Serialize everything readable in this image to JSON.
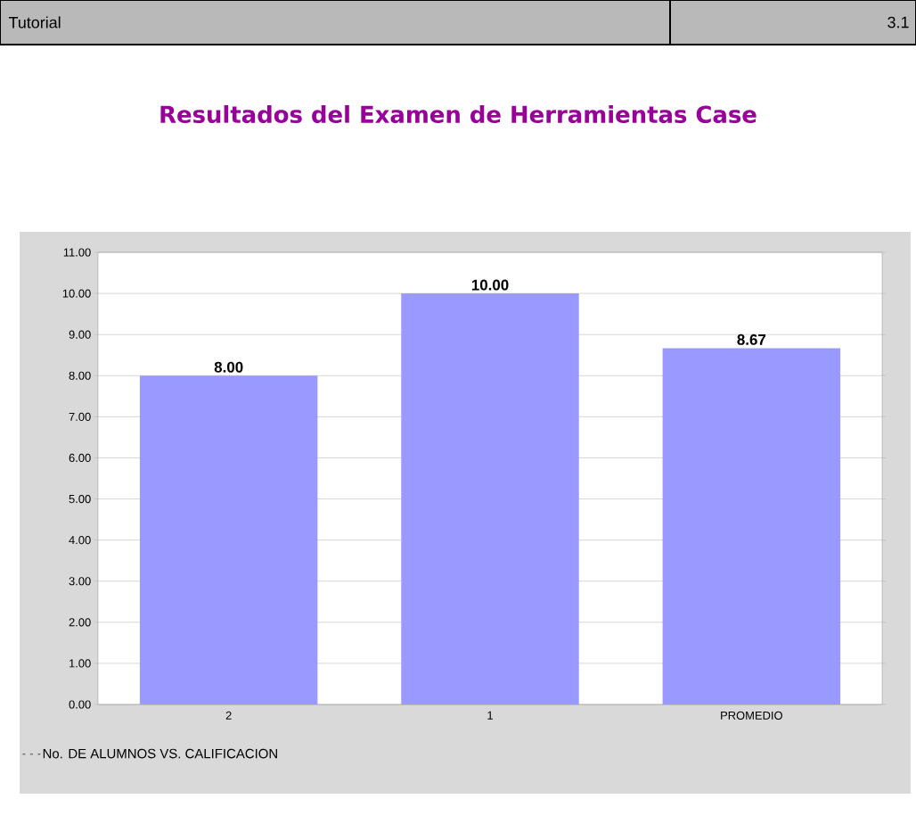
{
  "chart_data": {
    "type": "bar",
    "title": "Resultados del Examen de Herramientas Case",
    "annotations": [
      "Tutorial",
      "3.1"
    ],
    "categories": [
      "2",
      "1",
      "PROMEDIO"
    ],
    "series": [
      {
        "name": "No. DE ALUMNOS VS. CALIFICACION",
        "color": "#9999ff",
        "values": [
          8,
          10,
          8.67
        ],
        "value_labels": [
          "8.00",
          "10.00",
          "8.67"
        ]
      }
    ],
    "ylim": [
      0,
      11
    ],
    "yticks": [
      {
        "value": 0,
        "label": "0.00"
      },
      {
        "value": 1,
        "label": "1.00"
      },
      {
        "value": 2,
        "label": "2.00"
      },
      {
        "value": 3,
        "label": "3.00"
      },
      {
        "value": 4,
        "label": "4.00"
      },
      {
        "value": 5,
        "label": "5.00"
      },
      {
        "value": 6,
        "label": "6.00"
      },
      {
        "value": 7,
        "label": "7.00"
      },
      {
        "value": 8,
        "label": "8.00"
      },
      {
        "value": 9,
        "label": "9.00"
      },
      {
        "value": 10,
        "label": "10.00"
      },
      {
        "value": 11,
        "label": "11.00"
      }
    ],
    "grid": "y",
    "legend": "bottom left"
  }
}
